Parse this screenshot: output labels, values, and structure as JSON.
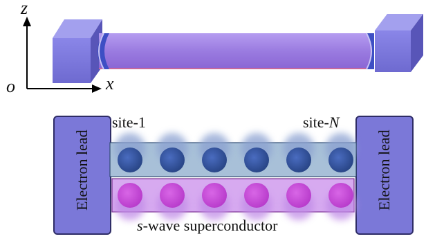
{
  "axes": {
    "z_label": "z",
    "o_label": "o",
    "x_label": "x"
  },
  "site_labels": {
    "first": "site-1",
    "last_prefix": "site-",
    "last_index": "N"
  },
  "lead_label": "Electron lead",
  "superconductor_label": {
    "prefix": "s",
    "rest": "-wave superconductor"
  },
  "counts": {
    "sites": 6,
    "superconductor_sites": 6
  },
  "colors": {
    "lead_fill": "#7b78d8",
    "wire_fill": "#9d7fe0",
    "site_fill": "#2f4e9a",
    "sc_site_fill": "#c64ad8",
    "chain_box_fill": "#a8c0d8",
    "sc_box_fill": "#d3a6ee"
  }
}
